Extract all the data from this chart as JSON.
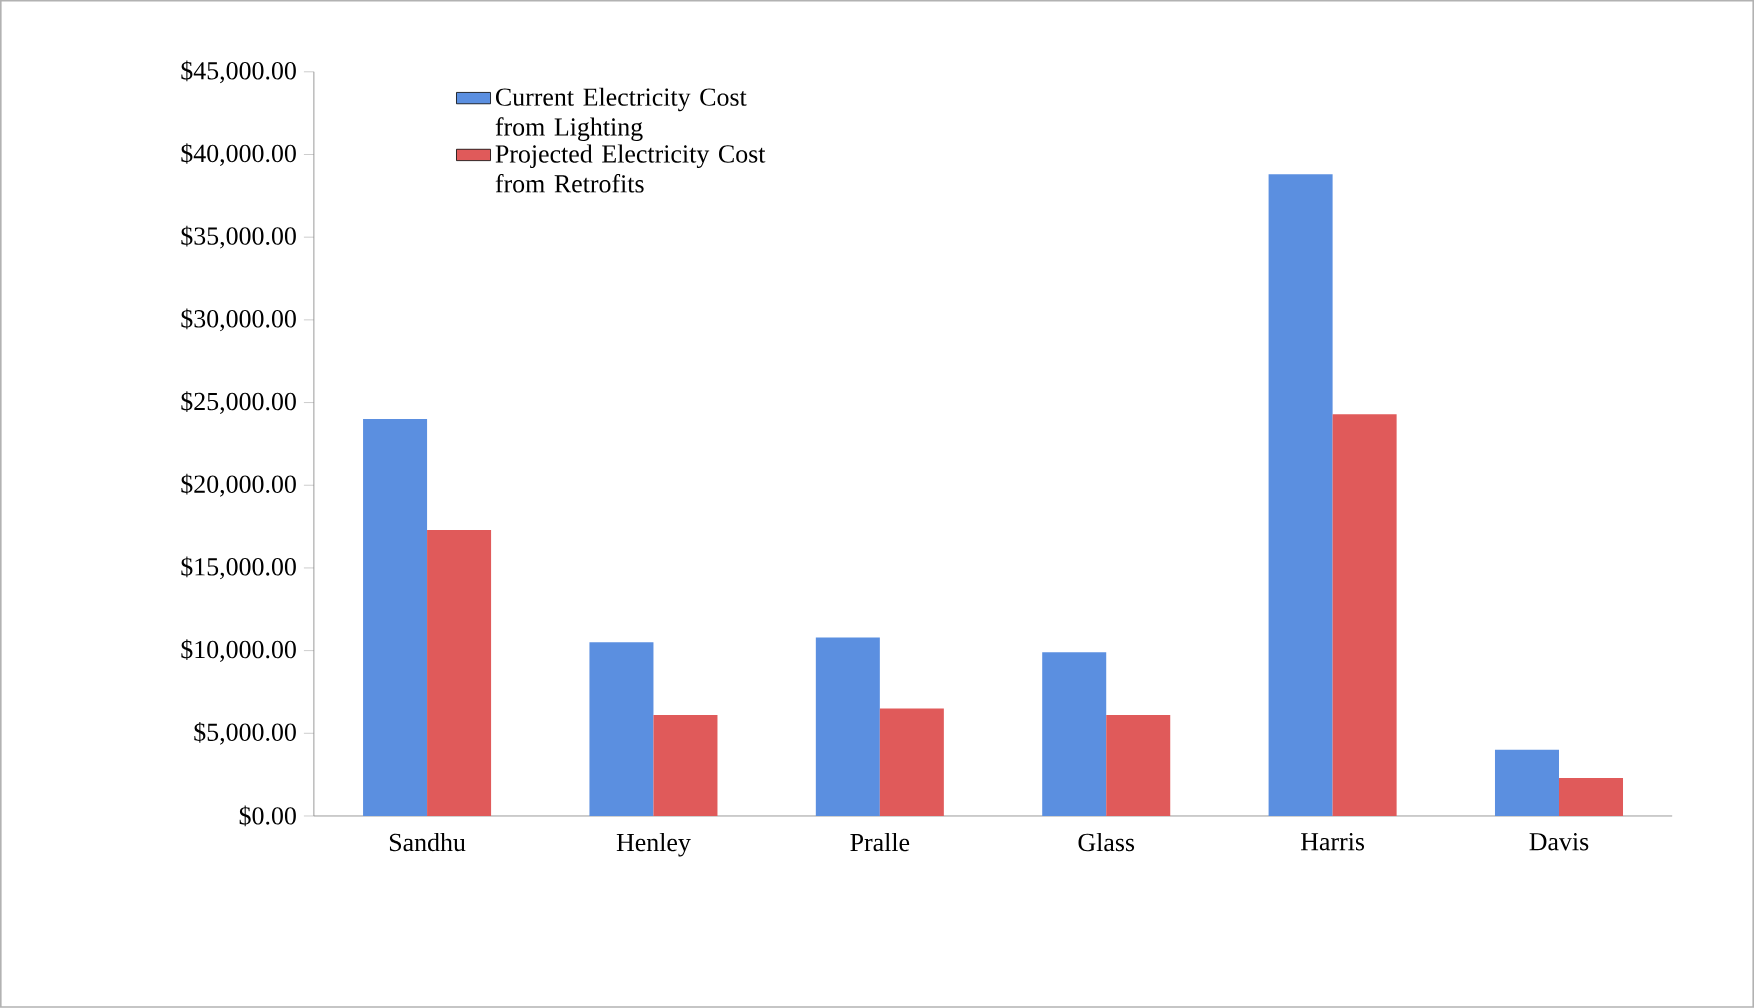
{
  "chart_data": {
    "type": "bar",
    "categories": [
      "Sandhu",
      "Henley",
      "Pralle",
      "Glass",
      "Harris",
      "Davis"
    ],
    "series": [
      {
        "name": "Current Electricity Cost from Lighting",
        "color": "#5b8fe0",
        "values": [
          24000,
          10500,
          10800,
          9900,
          38800,
          4000
        ]
      },
      {
        "name": "Projected Electricity Cost from Retrofits",
        "color": "#e05a5a",
        "values": [
          17300,
          6100,
          6500,
          6100,
          24300,
          2300
        ]
      }
    ],
    "ylim": [
      0,
      45000
    ],
    "yticks": [
      {
        "value": 0,
        "label": "$0.00"
      },
      {
        "value": 5000,
        "label": "$5,000.00"
      },
      {
        "value": 10000,
        "label": "$10,000.00"
      },
      {
        "value": 15000,
        "label": "$15,000.00"
      },
      {
        "value": 20000,
        "label": "$20,000.00"
      },
      {
        "value": 25000,
        "label": "$25,000.00"
      },
      {
        "value": 30000,
        "label": "$30,000.00"
      },
      {
        "value": 35000,
        "label": "$35,000.00"
      },
      {
        "value": 40000,
        "label": "$40,000.00"
      },
      {
        "value": 45000,
        "label": "$45,000.00"
      }
    ],
    "grid": false,
    "legend": "top left"
  }
}
